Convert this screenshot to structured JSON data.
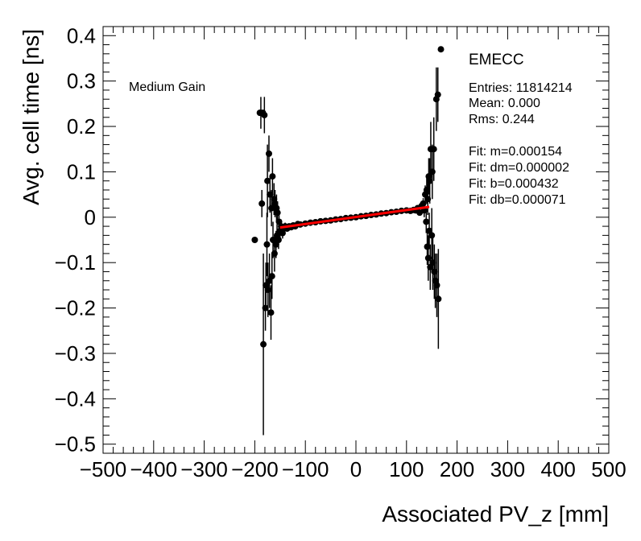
{
  "chart_data": {
    "type": "scatter",
    "xlabel": "Associated PV_z [mm]",
    "ylabel": "Avg. cell time [ns]",
    "xlim": [
      -500,
      500
    ],
    "ylim": [
      -0.52,
      0.42
    ],
    "x_ticks": [
      -500,
      -400,
      -300,
      -200,
      -100,
      0,
      100,
      200,
      300,
      400,
      500
    ],
    "x_tick_labels": [
      "−500",
      "−400",
      "−300",
      "−200",
      "−100",
      "0",
      "100",
      "200",
      "300",
      "400",
      "500"
    ],
    "y_ticks": [
      -0.5,
      -0.4,
      -0.3,
      -0.2,
      -0.1,
      0,
      0.1,
      0.2,
      0.3,
      0.4
    ],
    "y_tick_labels": [
      "−0.5",
      "−0.4",
      "−0.3",
      "−0.2",
      "−0.1",
      "0",
      "0.1",
      "0.2",
      "0.3",
      "0.4"
    ],
    "grid": false,
    "annotation": "Medium Gain",
    "stats": {
      "title": "EMECC",
      "entries": "Entries: 11814214",
      "mean": "Mean: 0.000",
      "rms": "Rms: 0.244",
      "fit_m": "Fit: m=0.000154",
      "fit_dm": "Fit: dm=0.000002",
      "fit_b": "Fit: b=0.000432",
      "fit_db": "Fit: db=0.000071"
    },
    "fit_line": {
      "x": [
        -150,
        145
      ],
      "slope": 0.000154,
      "intercept": 0.000432,
      "color": "#ff0000"
    },
    "marker_color": "#000000",
    "points": [
      {
        "x": -200,
        "y": -0.05,
        "err": 0.0
      },
      {
        "x": -190,
        "y": 0.23,
        "err": 0.0
      },
      {
        "x": -188,
        "y": 0.23,
        "err": 0.035
      },
      {
        "x": -186,
        "y": 0.03,
        "err": 0.03
      },
      {
        "x": -184,
        "y": 0.23,
        "err": 0.0
      },
      {
        "x": -183,
        "y": -0.28,
        "err": 0.2
      },
      {
        "x": -181,
        "y": 0.225,
        "err": 0.04
      },
      {
        "x": -179,
        "y": -0.2,
        "err": 0.05
      },
      {
        "x": -178,
        "y": -0.15,
        "err": 0.05
      },
      {
        "x": -176,
        "y": -0.06,
        "err": 0.07
      },
      {
        "x": -175,
        "y": 0.08,
        "err": 0.08
      },
      {
        "x": -174,
        "y": -0.16,
        "err": 0.06
      },
      {
        "x": -172,
        "y": 0.14,
        "err": 0.04
      },
      {
        "x": -171,
        "y": -0.14,
        "err": 0.06
      },
      {
        "x": -170,
        "y": 0.05,
        "err": 0.04
      },
      {
        "x": -168,
        "y": -0.21,
        "err": 0.06
      },
      {
        "x": -167,
        "y": 0.02,
        "err": 0.04
      },
      {
        "x": -166,
        "y": -0.13,
        "err": 0.05
      },
      {
        "x": -165,
        "y": 0.09,
        "err": 0.04
      },
      {
        "x": -164,
        "y": -0.05,
        "err": 0.04
      },
      {
        "x": -162,
        "y": 0.04,
        "err": 0.035
      },
      {
        "x": -161,
        "y": -0.08,
        "err": 0.04
      },
      {
        "x": -160,
        "y": 0.03,
        "err": 0.03
      },
      {
        "x": -158,
        "y": -0.06,
        "err": 0.03
      },
      {
        "x": -157,
        "y": 0.02,
        "err": 0.03
      },
      {
        "x": -156,
        "y": -0.04,
        "err": 0.025
      },
      {
        "x": -155,
        "y": 0.01,
        "err": 0.025
      },
      {
        "x": -153,
        "y": -0.05,
        "err": 0.02
      },
      {
        "x": -152,
        "y": -0.01,
        "err": 0.02
      },
      {
        "x": -150,
        "y": -0.03,
        "err": 0.015
      },
      {
        "x": -148,
        "y": -0.02,
        "err": 0.015
      },
      {
        "x": -145,
        "y": -0.035,
        "err": 0.012
      },
      {
        "x": -142,
        "y": -0.025,
        "err": 0.01
      },
      {
        "x": -140,
        "y": -0.02,
        "err": 0.008
      },
      {
        "x": -136,
        "y": -0.025,
        "err": 0.007
      },
      {
        "x": -132,
        "y": -0.02,
        "err": 0.006
      },
      {
        "x": -128,
        "y": -0.022,
        "err": 0.005
      },
      {
        "x": -124,
        "y": -0.018,
        "err": 0.004
      },
      {
        "x": -120,
        "y": -0.02,
        "err": 0.003
      },
      {
        "x": -115,
        "y": -0.015,
        "err": 0.003
      },
      {
        "x": -110,
        "y": -0.016,
        "err": 0.002
      },
      {
        "x": -100,
        "y": -0.014,
        "err": 0.002
      },
      {
        "x": -90,
        "y": -0.012,
        "err": 0.002
      },
      {
        "x": -80,
        "y": -0.011,
        "err": 0.002
      },
      {
        "x": -70,
        "y": -0.009,
        "err": 0.002
      },
      {
        "x": -60,
        "y": -0.008,
        "err": 0.002
      },
      {
        "x": -50,
        "y": -0.007,
        "err": 0.002
      },
      {
        "x": -40,
        "y": -0.005,
        "err": 0.002
      },
      {
        "x": -30,
        "y": -0.004,
        "err": 0.002
      },
      {
        "x": -20,
        "y": -0.002,
        "err": 0.002
      },
      {
        "x": -10,
        "y": -0.001,
        "err": 0.002
      },
      {
        "x": 0,
        "y": 0.0,
        "err": 0.002
      },
      {
        "x": 10,
        "y": 0.002,
        "err": 0.002
      },
      {
        "x": 20,
        "y": 0.003,
        "err": 0.002
      },
      {
        "x": 30,
        "y": 0.005,
        "err": 0.002
      },
      {
        "x": 40,
        "y": 0.006,
        "err": 0.002
      },
      {
        "x": 50,
        "y": 0.008,
        "err": 0.002
      },
      {
        "x": 60,
        "y": 0.009,
        "err": 0.002
      },
      {
        "x": 70,
        "y": 0.011,
        "err": 0.002
      },
      {
        "x": 80,
        "y": 0.012,
        "err": 0.002
      },
      {
        "x": 90,
        "y": 0.014,
        "err": 0.002
      },
      {
        "x": 100,
        "y": 0.015,
        "err": 0.002
      },
      {
        "x": 108,
        "y": 0.014,
        "err": 0.003
      },
      {
        "x": 114,
        "y": 0.016,
        "err": 0.003
      },
      {
        "x": 118,
        "y": 0.015,
        "err": 0.004
      },
      {
        "x": 122,
        "y": 0.02,
        "err": 0.005
      },
      {
        "x": 126,
        "y": 0.01,
        "err": 0.006
      },
      {
        "x": 130,
        "y": 0.025,
        "err": 0.008
      },
      {
        "x": 133,
        "y": 0.03,
        "err": 0.012
      },
      {
        "x": 135,
        "y": 0.015,
        "err": 0.015
      },
      {
        "x": 137,
        "y": 0.05,
        "err": 0.02
      },
      {
        "x": 139,
        "y": -0.01,
        "err": 0.025
      },
      {
        "x": 140,
        "y": 0.06,
        "err": 0.03
      },
      {
        "x": 141,
        "y": -0.065,
        "err": 0.04
      },
      {
        "x": 142,
        "y": 0.04,
        "err": 0.035
      },
      {
        "x": 143,
        "y": -0.09,
        "err": 0.05
      },
      {
        "x": 144,
        "y": 0.09,
        "err": 0.04
      },
      {
        "x": 145,
        "y": -0.03,
        "err": 0.04
      },
      {
        "x": 146,
        "y": 0.08,
        "err": 0.05
      },
      {
        "x": 147,
        "y": -0.11,
        "err": 0.05
      },
      {
        "x": 148,
        "y": 0.15,
        "err": 0.06
      },
      {
        "x": 150,
        "y": -0.04,
        "err": 0.06
      },
      {
        "x": 151,
        "y": 0.1,
        "err": 0.06
      },
      {
        "x": 152,
        "y": -0.1,
        "err": 0.06
      },
      {
        "x": 154,
        "y": 0.15,
        "err": 0.07
      },
      {
        "x": 155,
        "y": -0.12,
        "err": 0.06
      },
      {
        "x": 157,
        "y": -0.14,
        "err": 0.06
      },
      {
        "x": 159,
        "y": 0.26,
        "err": 0.07
      },
      {
        "x": 160,
        "y": -0.15,
        "err": 0.07
      },
      {
        "x": 162,
        "y": 0.27,
        "err": 0.06
      },
      {
        "x": 163,
        "y": -0.18,
        "err": 0.11
      },
      {
        "x": 168,
        "y": 0.37,
        "err": 0.0
      }
    ]
  }
}
